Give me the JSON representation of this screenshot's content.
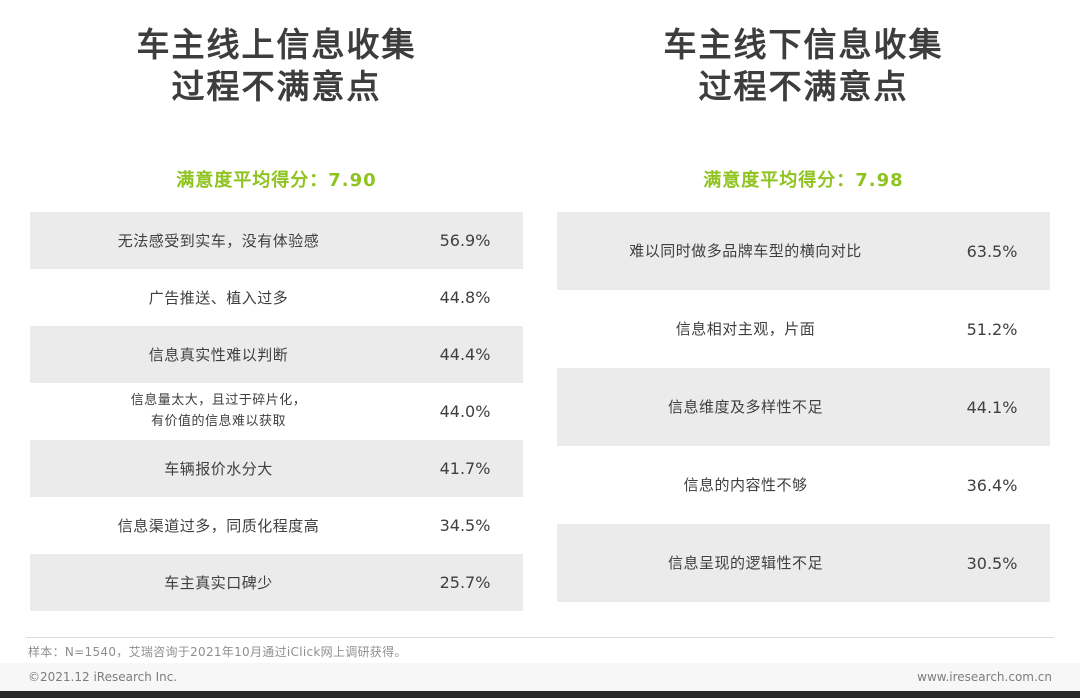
{
  "colors": {
    "accent_green": "#8fc31f",
    "row_shade": "#ebebeb",
    "title_text": "#3d3d3d"
  },
  "chart_data": [
    {
      "type": "table",
      "title": "车主线上信息收集\n过程不满意点",
      "score_label": "满意度平均得分：7.90",
      "satisfaction_score": 7.9,
      "unit": "%",
      "categories": [
        "无法感受到实车，没有体验感",
        "广告推送、植入过多",
        "信息真实性难以判断",
        "信息量太大，且过于碎片化，有价值的信息难以获取",
        "车辆报价水分大",
        "信息渠道过多，同质化程度高",
        "车主真实口碑少"
      ],
      "values": [
        56.9,
        44.8,
        44.4,
        44.0,
        41.7,
        34.5,
        25.7
      ],
      "rows": [
        {
          "label": "无法感受到实车，没有体验感",
          "value": "56.9%"
        },
        {
          "label": "广告推送、植入过多",
          "value": "44.8%"
        },
        {
          "label": "信息真实性难以判断",
          "value": "44.4%"
        },
        {
          "label": "信息量太大，且过于碎片化，\n有价值的信息难以获取",
          "value": "44.0%"
        },
        {
          "label": "车辆报价水分大",
          "value": "41.7%"
        },
        {
          "label": "信息渠道过多，同质化程度高",
          "value": "34.5%"
        },
        {
          "label": "车主真实口碑少",
          "value": "25.7%"
        }
      ]
    },
    {
      "type": "table",
      "title": "车主线下信息收集\n过程不满意点",
      "score_label": "满意度平均得分：7.98",
      "satisfaction_score": 7.98,
      "unit": "%",
      "categories": [
        "难以同时做多品牌车型的横向对比",
        "信息相对主观，片面",
        "信息维度及多样性不足",
        "信息的内容性不够",
        "信息呈现的逻辑性不足"
      ],
      "values": [
        63.5,
        51.2,
        44.1,
        36.4,
        30.5
      ],
      "rows": [
        {
          "label": "难以同时做多品牌车型的横向对比",
          "value": "63.5%"
        },
        {
          "label": "信息相对主观，片面",
          "value": "51.2%"
        },
        {
          "label": "信息维度及多样性不足",
          "value": "44.1%"
        },
        {
          "label": "信息的内容性不够",
          "value": "36.4%"
        },
        {
          "label": "信息呈现的逻辑性不足",
          "value": "30.5%"
        }
      ]
    }
  ],
  "footer": {
    "note": "样本：N=1540，艾瑞咨询于2021年10月通过iClick网上调研获得。",
    "copyright": "©2021.12 iResearch Inc.",
    "website": "www.iresearch.com.cn"
  }
}
